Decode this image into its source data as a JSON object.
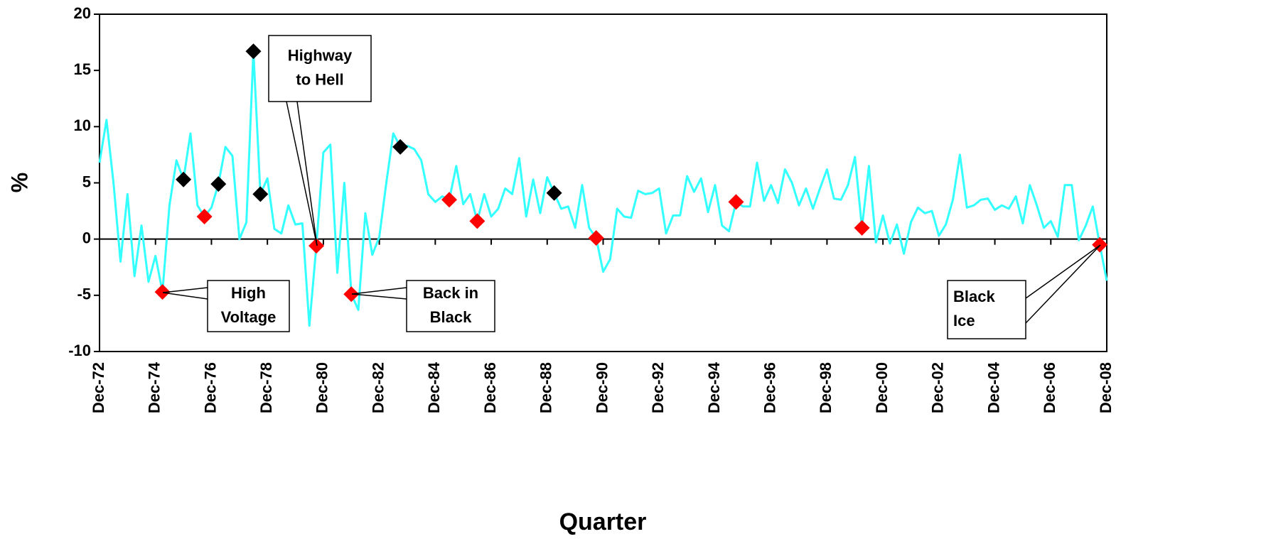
{
  "chart_data": {
    "type": "line",
    "y_label": "%",
    "x_label": "Quarter",
    "categories": [
      "Dec-72",
      null,
      null,
      null,
      null,
      null,
      null,
      null,
      "Dec-74",
      null,
      null,
      null,
      null,
      null,
      null,
      null,
      "Dec-76",
      null,
      null,
      null,
      null,
      null,
      null,
      null,
      "Dec-78",
      null,
      null,
      null,
      null,
      null,
      null,
      null,
      "Dec-80",
      null,
      null,
      null,
      null,
      null,
      null,
      null,
      "Dec-82",
      null,
      null,
      null,
      null,
      null,
      null,
      null,
      "Dec-84",
      null,
      null,
      null,
      null,
      null,
      null,
      null,
      "Dec-86",
      null,
      null,
      null,
      null,
      null,
      null,
      null,
      "Dec-88",
      null,
      null,
      null,
      null,
      null,
      null,
      null,
      "Dec-90",
      null,
      null,
      null,
      null,
      null,
      null,
      null,
      "Dec-92",
      null,
      null,
      null,
      null,
      null,
      null,
      null,
      "Dec-94",
      null,
      null,
      null,
      null,
      null,
      null,
      null,
      "Dec-96",
      null,
      null,
      null,
      null,
      null,
      null,
      null,
      "Dec-98",
      null,
      null,
      null,
      null,
      null,
      null,
      null,
      "Dec-00",
      null,
      null,
      null,
      null,
      null,
      null,
      null,
      "Dec-02",
      null,
      null,
      null,
      null,
      null,
      null,
      null,
      "Dec-04",
      null,
      null,
      null,
      null,
      null,
      null,
      null,
      "Dec-06",
      null,
      null,
      null,
      null,
      null,
      null,
      null,
      "Dec-08"
    ],
    "series": [
      {
        "color": "#33ffff",
        "marker": "none",
        "values": [
          6.8,
          10.6,
          5,
          -2,
          4,
          -3.3,
          1.2,
          -3.8,
          -1.5,
          -4.7,
          3,
          7,
          5.3,
          9.4,
          3,
          2,
          2.8,
          4.9,
          8.2,
          7.4,
          0,
          1.5,
          16.7,
          4,
          5.4,
          0.9,
          0.5,
          3,
          1.3,
          1.4,
          -7.7,
          -0.6,
          7.7,
          8.4,
          -3,
          5,
          -4.9,
          -6.3,
          2.3,
          -1.4,
          0.2,
          5,
          9.4,
          8.2,
          8.3,
          8,
          7,
          4,
          3.3,
          3.8,
          3.5,
          6.5,
          3.1,
          4,
          1.6,
          4,
          2,
          2.7,
          4.5,
          4,
          7.2,
          2,
          5.3,
          2.3,
          5.5,
          4.1,
          2.7,
          2.9,
          1,
          4.8,
          1,
          0.1,
          -2.9,
          -1.8,
          2.7,
          2,
          1.9,
          4.3,
          4,
          4.1,
          4.5,
          0.5,
          2.1,
          2.1,
          5.6,
          4.2,
          5.4,
          2.4,
          4.8,
          1.2,
          0.7,
          3.3,
          2.9,
          2.9,
          6.8,
          3.4,
          4.8,
          3.2,
          6.2,
          5,
          3,
          4.5,
          2.7,
          4.5,
          6.2,
          3.6,
          3.5,
          4.8,
          7.3,
          1,
          6.5,
          -0.3,
          2.1,
          -0.4,
          1.3,
          -1.3,
          1.5,
          2.8,
          2.3,
          2.5,
          0.3,
          1.3,
          3.5,
          7.5,
          2.8,
          3,
          3.5,
          3.6,
          2.6,
          3,
          2.7,
          3.8,
          1.4,
          4.8,
          3,
          1,
          1.6,
          0.2,
          4.8,
          4.8,
          -0.1,
          1.2,
          2.9,
          -0.5,
          -3.7
        ]
      },
      {
        "color": "#ff0000",
        "marker": "diamond",
        "values": [
          null,
          null,
          null,
          null,
          null,
          null,
          null,
          null,
          null,
          -4.7,
          null,
          null,
          null,
          null,
          null,
          2,
          null,
          null,
          null,
          null,
          null,
          null,
          null,
          null,
          null,
          null,
          null,
          null,
          null,
          null,
          null,
          -0.6,
          null,
          null,
          null,
          null,
          -4.9,
          null,
          null,
          null,
          null,
          null,
          null,
          null,
          null,
          null,
          null,
          null,
          null,
          null,
          3.5,
          null,
          null,
          null,
          1.6,
          null,
          null,
          null,
          null,
          null,
          null,
          null,
          null,
          null,
          null,
          null,
          null,
          null,
          null,
          null,
          null,
          0.1,
          null,
          null,
          null,
          null,
          null,
          null,
          null,
          null,
          null,
          null,
          null,
          null,
          null,
          null,
          null,
          null,
          null,
          null,
          null,
          3.3,
          null,
          null,
          null,
          null,
          null,
          null,
          null,
          null,
          null,
          null,
          null,
          null,
          null,
          null,
          null,
          null,
          null,
          1,
          null,
          null,
          null,
          null,
          null,
          null,
          null,
          null,
          null,
          null,
          null,
          null,
          null,
          null,
          null,
          null,
          null,
          null,
          null,
          null,
          null,
          null,
          null,
          null,
          null,
          null,
          null,
          null,
          null,
          null,
          null,
          null,
          null,
          -0.5,
          null
        ]
      },
      {
        "color": "#000000",
        "marker": "diamond",
        "values": [
          null,
          null,
          null,
          null,
          null,
          null,
          null,
          null,
          null,
          null,
          null,
          null,
          5.3,
          null,
          null,
          null,
          null,
          4.9,
          null,
          null,
          null,
          null,
          16.7,
          4,
          null,
          null,
          null,
          null,
          null,
          null,
          null,
          null,
          null,
          null,
          null,
          null,
          null,
          null,
          null,
          null,
          null,
          null,
          null,
          8.2,
          null,
          null,
          null,
          null,
          null,
          null,
          null,
          null,
          null,
          null,
          null,
          null,
          null,
          null,
          null,
          null,
          null,
          null,
          null,
          null,
          null,
          4.1,
          null,
          null,
          null,
          null,
          null,
          null,
          null,
          null,
          null,
          null,
          null,
          null,
          null,
          null,
          null,
          null,
          null,
          null,
          null,
          null,
          null,
          null,
          null,
          null,
          null,
          null,
          null,
          null,
          null,
          null,
          null,
          null,
          null,
          null,
          null,
          null,
          null,
          null,
          null,
          null,
          null,
          null,
          null,
          null,
          null,
          null,
          null,
          null,
          null,
          null,
          null,
          null,
          null,
          null,
          null,
          null,
          null,
          null,
          null,
          null,
          null,
          null,
          null,
          null,
          null,
          null,
          null,
          null,
          null,
          null,
          null,
          null,
          null,
          null,
          null,
          null,
          null,
          null,
          null
        ]
      }
    ],
    "ylim": [
      -10,
      20
    ],
    "yticks": [
      -10,
      -5,
      0,
      5,
      10,
      15,
      20
    ],
    "annotations": [
      {
        "lines": [
          "Highway",
          "to Hell"
        ]
      },
      {
        "lines": [
          "High",
          "Voltage"
        ]
      },
      {
        "lines": [
          "Back in",
          "Black"
        ]
      },
      {
        "lines": [
          "Black",
          "Ice"
        ]
      }
    ]
  }
}
